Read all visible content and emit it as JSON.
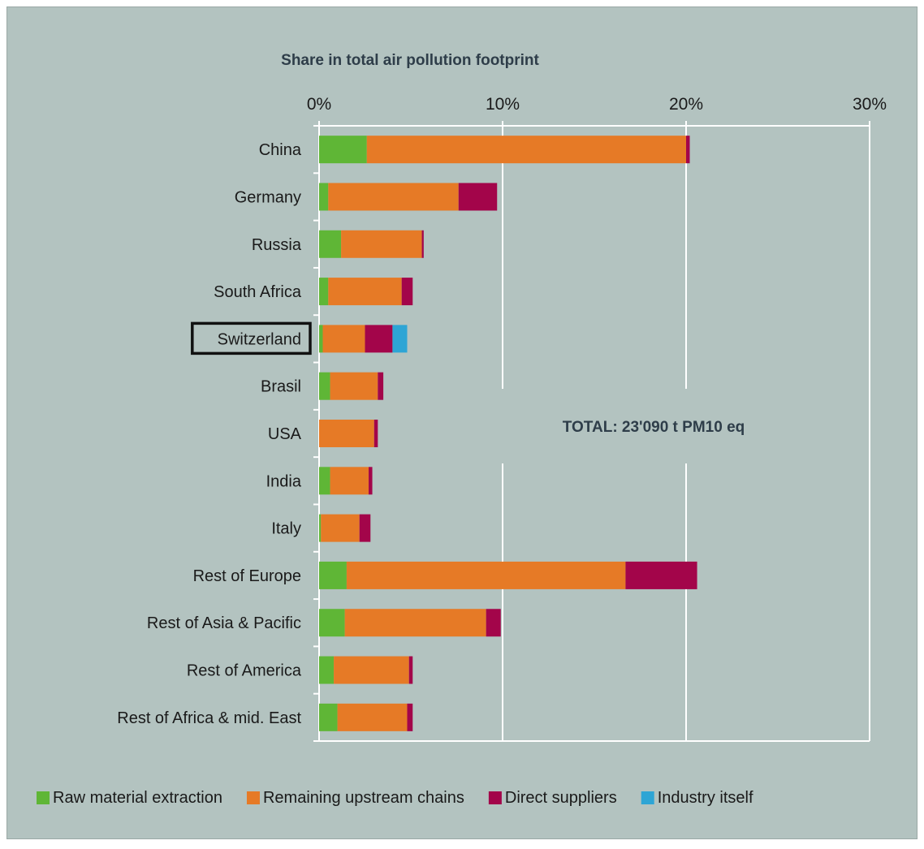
{
  "chart_data": {
    "type": "bar",
    "orientation": "horizontal",
    "stacked": true,
    "title": "Share in total air pollution footprint",
    "annotation": "TOTAL: 23'090 t PM10 eq",
    "highlighted_category": "Switzerland",
    "xlim": [
      0,
      30
    ],
    "x_ticks": [
      "0%",
      "10%",
      "20%",
      "30%"
    ],
    "x_tick_values": [
      0,
      10,
      20,
      30
    ],
    "grid": true,
    "legend_position": "bottom",
    "background_color": "#b3c3c0",
    "categories": [
      "China",
      "Germany",
      "Russia",
      "South Africa",
      "Switzerland",
      "Brasil",
      "USA",
      "India",
      "Italy",
      "Rest of Europe",
      "Rest of Asia & Pacific",
      "Rest of America",
      "Rest of Africa & mid. East"
    ],
    "series": [
      {
        "name": "Raw material extraction",
        "color": "#5fb636",
        "values": [
          2.6,
          0.5,
          1.2,
          0.5,
          0.2,
          0.6,
          0.0,
          0.6,
          0.1,
          1.5,
          1.4,
          0.8,
          1.0
        ]
      },
      {
        "name": "Remaining upstream chains",
        "color": "#e67a26",
        "values": [
          17.4,
          7.1,
          4.4,
          4.0,
          2.3,
          2.6,
          3.0,
          2.1,
          2.1,
          15.2,
          7.7,
          4.1,
          3.8
        ]
      },
      {
        "name": "Direct suppliers",
        "color": "#a3054a",
        "values": [
          0.2,
          2.1,
          0.1,
          0.6,
          1.5,
          0.3,
          0.2,
          0.2,
          0.6,
          3.9,
          0.8,
          0.2,
          0.3
        ]
      },
      {
        "name": "Industry itself",
        "color": "#2ea5d5",
        "values": [
          0,
          0,
          0,
          0,
          0.8,
          0,
          0,
          0,
          0,
          0,
          0,
          0,
          0
        ]
      }
    ]
  }
}
